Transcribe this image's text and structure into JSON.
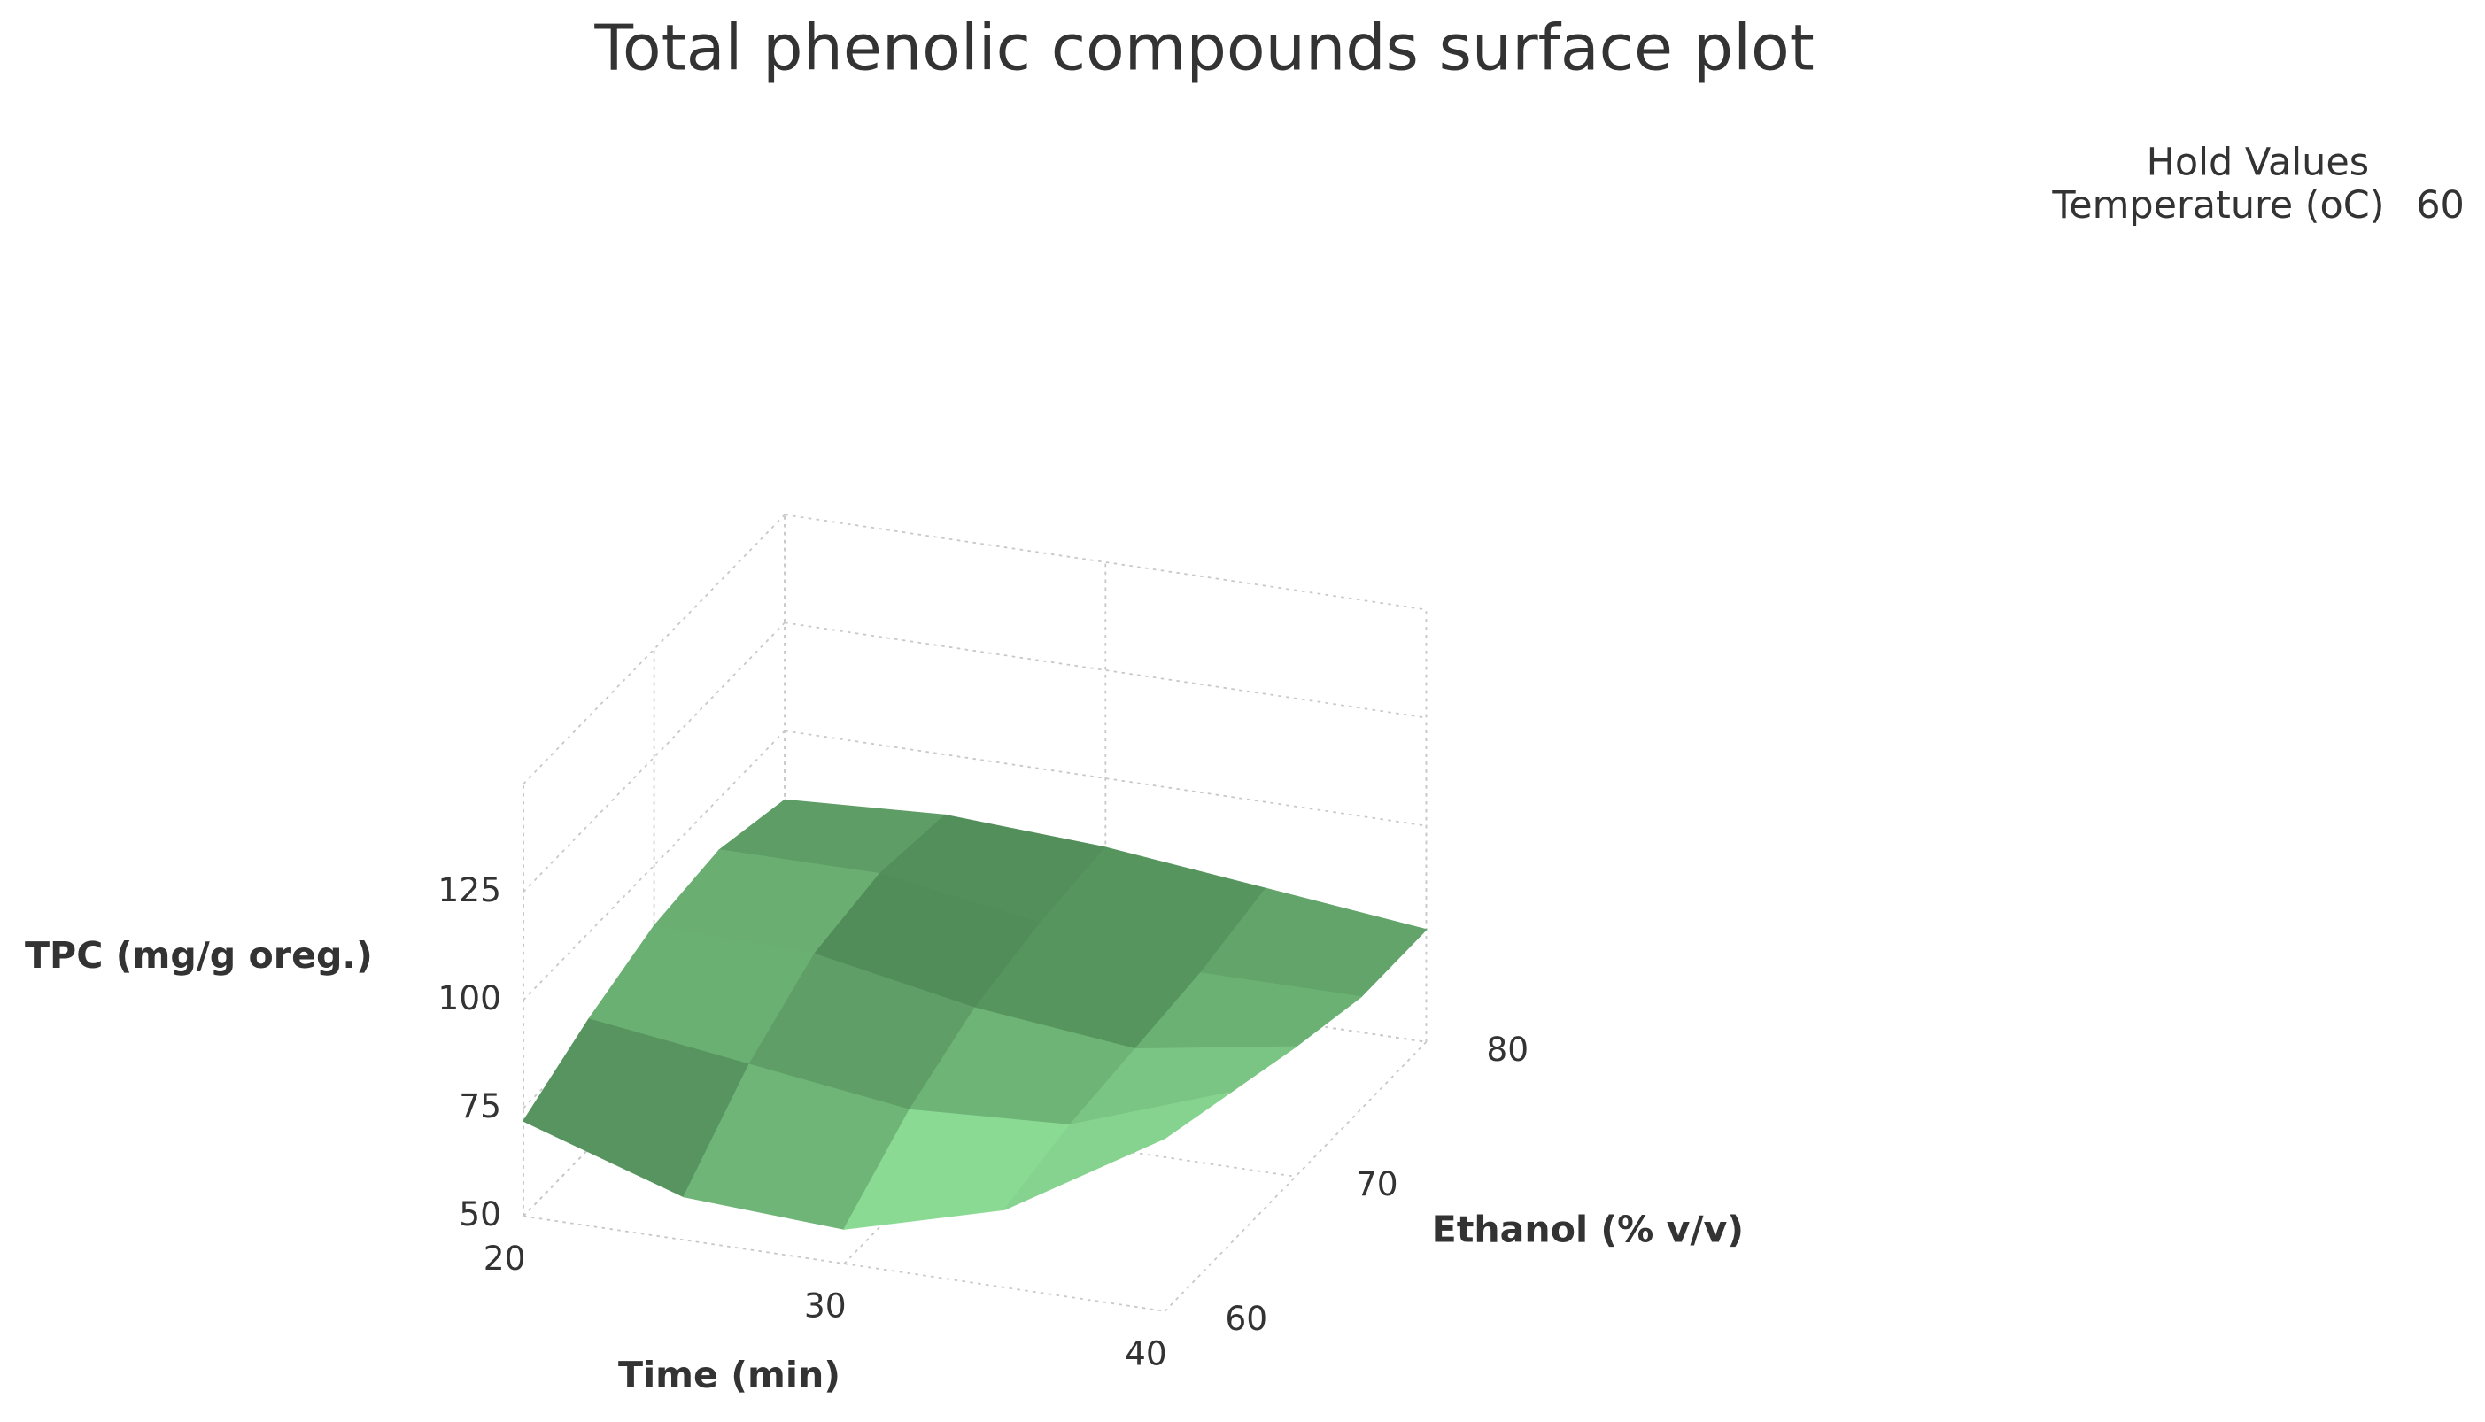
{
  "chart_data": {
    "type": "surface",
    "title": "Total phenolic compounds surface plot",
    "hold_values": {
      "title": "Hold Values",
      "items": [
        {
          "name": "Temperature (oC)",
          "value": 60
        }
      ]
    },
    "x_label": "Time (min)",
    "y_label": "Ethanol (% v/v)",
    "z_label": "TPC (mg/g oreg.)",
    "x": [
      20,
      25,
      30,
      35,
      40
    ],
    "y": [
      60,
      65,
      70,
      75,
      80
    ],
    "z": [
      [
        72,
        60,
        58,
        68,
        90
      ],
      [
        80,
        75,
        70,
        72,
        85
      ],
      [
        86,
        85,
        78,
        74,
        80
      ],
      [
        88,
        88,
        82,
        76,
        76
      ],
      [
        84,
        86,
        84,
        80,
        76
      ]
    ],
    "xlim": [
      20,
      40
    ],
    "ylim": [
      60,
      80
    ],
    "zlim": [
      50,
      150
    ],
    "xticks": [
      20,
      30,
      40
    ],
    "yticks": [
      60,
      70,
      80
    ],
    "zticks": [
      50,
      75,
      100,
      125
    ],
    "color_light": "#9af0a4",
    "color_dark": "#1c4422",
    "grid": true
  }
}
